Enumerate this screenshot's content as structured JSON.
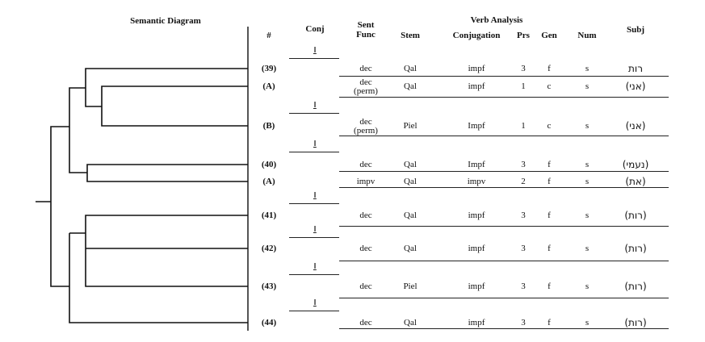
{
  "header": {
    "semantic_diagram": "Semantic Diagram",
    "number": "#",
    "conj": "Conj",
    "sent_func": "Sent Func",
    "verb_analysis": "Verb Analysis",
    "stem": "Stem",
    "conjugation": "Conjugation",
    "prs": "Prs",
    "gen": "Gen",
    "num": "Num",
    "subj": "Subj"
  },
  "conj_marker": "וַ",
  "rows": [
    {
      "id": "(39)",
      "func": "dec",
      "stem": "Qal",
      "conjugation": "impf",
      "prs": "3",
      "gen": "f",
      "num": "s",
      "subj": "רות",
      "conj": true
    },
    {
      "id": "(A)",
      "func": "dec (perm)",
      "stem": "Qal",
      "conjugation": "impf",
      "prs": "1",
      "gen": "c",
      "num": "s",
      "subj": "(אני)",
      "conj": false
    },
    {
      "id": "(B)",
      "func": "dec (perm)",
      "stem": "Piel",
      "conjugation": "Impf",
      "prs": "1",
      "gen": "c",
      "num": "s",
      "subj": "(אני)",
      "conj": true
    },
    {
      "id": "(40)",
      "func": "dec",
      "stem": "Qal",
      "conjugation": "Impf",
      "prs": "3",
      "gen": "f",
      "num": "s",
      "subj": "(נעמי)",
      "conj": true
    },
    {
      "id": "(A)",
      "func": "impv",
      "stem": "Qal",
      "conjugation": "impv",
      "prs": "2",
      "gen": "f",
      "num": "s",
      "subj": "(את)",
      "conj": false
    },
    {
      "id": "(41)",
      "func": "dec",
      "stem": "Qal",
      "conjugation": "impf",
      "prs": "3",
      "gen": "f",
      "num": "s",
      "subj": "(רות)",
      "conj": true
    },
    {
      "id": "(42)",
      "func": "dec",
      "stem": "Qal",
      "conjugation": "impf",
      "prs": "3",
      "gen": "f",
      "num": "s",
      "subj": "(רות)",
      "conj": true
    },
    {
      "id": "(43)",
      "func": "dec",
      "stem": "Piel",
      "conjugation": "impf",
      "prs": "3",
      "gen": "f",
      "num": "s",
      "subj": "(רות)",
      "conj": true
    },
    {
      "id": "(44)",
      "func": "dec",
      "stem": "Qal",
      "conjugation": "impf",
      "prs": "3",
      "gen": "f",
      "num": "s",
      "subj": "(רות)",
      "conj": true
    }
  ]
}
